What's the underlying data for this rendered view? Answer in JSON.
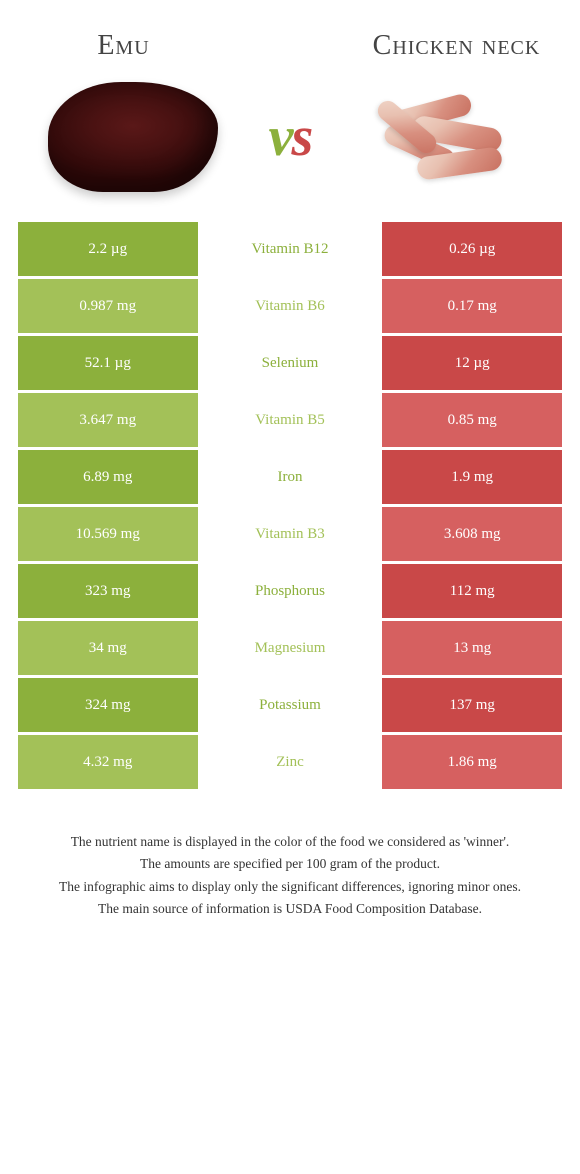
{
  "header": {
    "left_title": "Emu",
    "right_title": "Chicken neck",
    "vs": "vs"
  },
  "colors": {
    "emu": "#8cb03c",
    "emu_light": "#a3c158",
    "chicken": "#c94848",
    "chicken_light": "#d66060",
    "row_alt_adjust": 0
  },
  "table": {
    "rows": [
      {
        "left": "2.2 µg",
        "label": "Vitamin B12",
        "right": "0.26 µg",
        "winner": "left"
      },
      {
        "left": "0.987 mg",
        "label": "Vitamin B6",
        "right": "0.17 mg",
        "winner": "left"
      },
      {
        "left": "52.1 µg",
        "label": "Selenium",
        "right": "12 µg",
        "winner": "left"
      },
      {
        "left": "3.647 mg",
        "label": "Vitamin B5",
        "right": "0.85 mg",
        "winner": "left"
      },
      {
        "left": "6.89 mg",
        "label": "Iron",
        "right": "1.9 mg",
        "winner": "left"
      },
      {
        "left": "10.569 mg",
        "label": "Vitamin B3",
        "right": "3.608 mg",
        "winner": "left"
      },
      {
        "left": "323 mg",
        "label": "Phosphorus",
        "right": "112 mg",
        "winner": "left"
      },
      {
        "left": "34 mg",
        "label": "Magnesium",
        "right": "13 mg",
        "winner": "left"
      },
      {
        "left": "324 mg",
        "label": "Potassium",
        "right": "137 mg",
        "winner": "left"
      },
      {
        "left": "4.32 mg",
        "label": "Zinc",
        "right": "1.86 mg",
        "winner": "left"
      }
    ]
  },
  "footer": {
    "line1": "The nutrient name is displayed in the color of the food we considered as 'winner'.",
    "line2": "The amounts are specified per 100 gram of the product.",
    "line3": "The infographic aims to display only the significant differences, ignoring minor ones.",
    "line4": "The main source of information is USDA Food Composition Database."
  }
}
